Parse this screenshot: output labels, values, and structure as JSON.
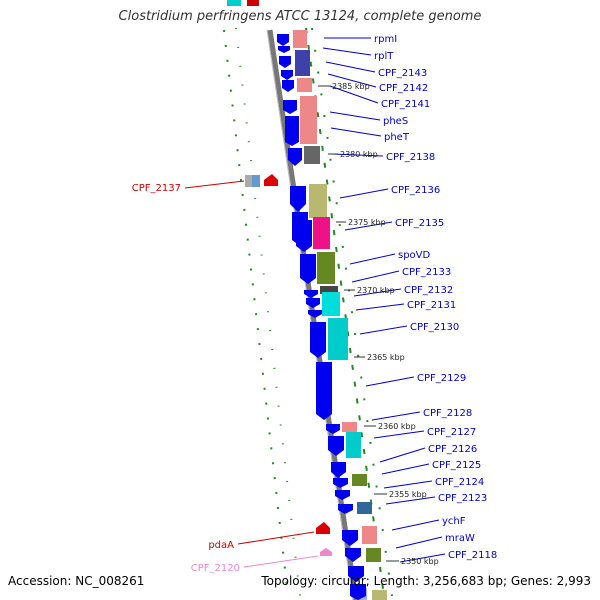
{
  "title": "Clostridium perfringens ATCC 13124, complete genome",
  "footer": {
    "accession": "Accession: NC_008261",
    "topology": "Topology: circular",
    "length": "Length: 3,256,683 bp",
    "genes": "Genes: 2,993"
  },
  "colors": {
    "backbone": "#888888",
    "forward_gene": "#0000ee",
    "label_blue": "#0000cc",
    "label_red": "#cc0000",
    "label_pink": "#ee88cc",
    "tick_green": "#228822"
  },
  "ticks": [
    "2385 kbp",
    "2380 kbp",
    "2375 kbp",
    "2370 kbp",
    "2365 kbp",
    "2360 kbp",
    "2355 kbp",
    "2350 kbp"
  ],
  "right_labels": [
    "rpmI",
    "rplT",
    "CPF_2143",
    "CPF_2142",
    "CPF_2141",
    "pheS",
    "pheT",
    "CPF_2138",
    "CPF_2136",
    "CPF_2135",
    "spoVD",
    "CPF_2133",
    "CPF_2132",
    "CPF_2131",
    "CPF_2130",
    "CPF_2129",
    "CPF_2128",
    "CPF_2127",
    "CPF_2126",
    "CPF_2125",
    "CPF_2124",
    "CPF_2123",
    "ychF",
    "mraW",
    "CPF_2118"
  ],
  "left_labels": [
    {
      "text": "CPF_2137",
      "color": "#cc0000"
    },
    {
      "text": "pdaA",
      "color": "#cc0000"
    },
    {
      "text": "CPF_2120",
      "color": "#ee88cc"
    }
  ]
}
